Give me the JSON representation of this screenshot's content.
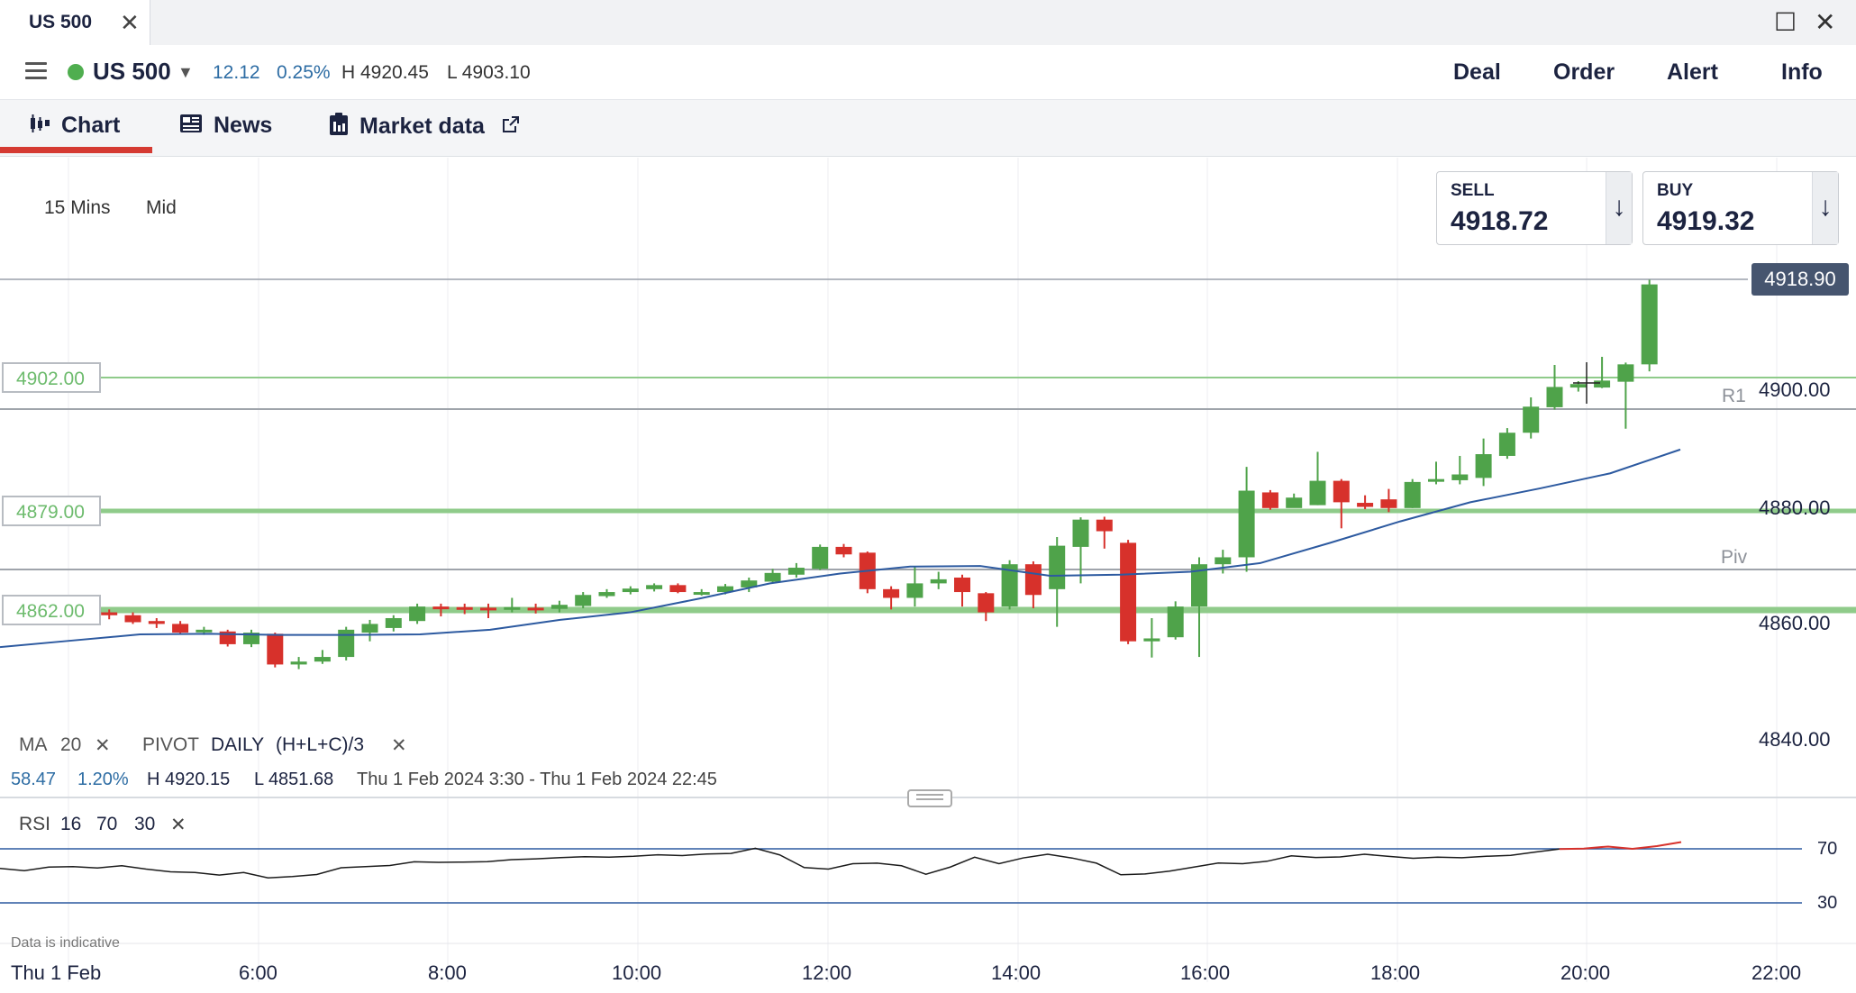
{
  "window": {
    "tab_title": "US 500",
    "close_glyph": "✕",
    "maximize_glyph": "☐",
    "window_close_glyph": "✕"
  },
  "header": {
    "instrument": "US 500",
    "change": "12.12",
    "change_pct": "0.25%",
    "high": "H 4920.45",
    "low": "L 4903.10",
    "menu": [
      "Deal",
      "Order",
      "Alert",
      "Info"
    ],
    "status_color": "#4fae4f"
  },
  "tabs": [
    "Chart",
    "News",
    "Market data"
  ],
  "controls": {
    "timeframe": "15 Mins",
    "price_type": "Mid"
  },
  "sell": {
    "label": "SELL",
    "value": "4918.72",
    "arrow": "↓"
  },
  "buy": {
    "label": "BUY",
    "value": "4919.32",
    "arrow": "↓"
  },
  "current_price": "4918.90",
  "levels": {
    "l1": "4902.00",
    "l2": "4879.00",
    "l3": "4862.00"
  },
  "pivots": {
    "r1": "R1",
    "piv": "Piv"
  },
  "legend": {
    "ma": "MA",
    "ma_value": "20",
    "pivot": "PIVOT",
    "pivot_period": "DAILY",
    "pivot_formula": "(H+L+C)/3",
    "remove_glyph": "✕"
  },
  "stats": {
    "change": "58.47",
    "change_pct": "1.20%",
    "high": "H 4920.15",
    "low": "L 4851.68",
    "range": "Thu 1 Feb 2024 3:30 - Thu 1 Feb 2024 22:45"
  },
  "rsi": {
    "label": "RSI",
    "period": "16",
    "upper": "70",
    "lower": "30"
  },
  "y_axis_labels": [
    "4900.00",
    "4880.00",
    "4860.00",
    "4840.00"
  ],
  "rsi_axis_labels": [
    "70",
    "30"
  ],
  "x_axis": {
    "date_label": "Thu 1 Feb",
    "times": [
      "6:00",
      "8:00",
      "10:00",
      "12:00",
      "14:00",
      "16:00",
      "18:00",
      "20:00",
      "22:00"
    ]
  },
  "disclaimer": "Data is indicative",
  "colors": {
    "up": "#4fa34a",
    "down": "#d7312b",
    "ma": "#2d5aa0",
    "level_green": "#8fcb8a",
    "pivot_grey": "#9fa4ab",
    "accent_red": "#d53a32"
  },
  "chart_data": {
    "type": "candlestick",
    "interval": "15 Mins",
    "ylim": [
      4830,
      4930
    ],
    "candles": [
      {
        "t": "5:30",
        "o": 4861.5,
        "c": 4860.5,
        "h": 4862,
        "l": 4859.5
      },
      {
        "t": "5:45",
        "o": 4861.0,
        "c": 4861.6,
        "h": 4862,
        "l": 4860.5
      },
      {
        "t": "6:15",
        "o": 4861.8,
        "c": 4861.5,
        "h": 4862.2,
        "l": 4861.0
      },
      {
        "t": "6:30",
        "o": 4861.6,
        "c": 4861.2,
        "h": 4862,
        "l": 4860.8
      },
      {
        "t": "6:45",
        "o": 4861.5,
        "c": 4861.0,
        "h": 4862,
        "l": 4860.3
      },
      {
        "t": "7:00",
        "o": 4861.0,
        "c": 4859.8,
        "h": 4861.5,
        "l": 4859.5
      },
      {
        "t": "7:15",
        "o": 4860.0,
        "c": 4859.5,
        "h": 4860.5,
        "l": 4858.8
      },
      {
        "t": "7:30",
        "o": 4859.5,
        "c": 4858.0,
        "h": 4860,
        "l": 4857.8
      },
      {
        "t": "7:45",
        "o": 4858.2,
        "c": 4858.5,
        "h": 4859,
        "l": 4857.6
      },
      {
        "t": "8:00",
        "o": 4858.2,
        "c": 4856.0,
        "h": 4858.5,
        "l": 4855.6
      },
      {
        "t": "8:15",
        "o": 4856.0,
        "c": 4858.0,
        "h": 4858.5,
        "l": 4855.5
      },
      {
        "t": "8:30",
        "o": 4857.8,
        "c": 4852.5,
        "h": 4858,
        "l": 4852.0
      },
      {
        "t": "8:45",
        "o": 4852.5,
        "c": 4853.0,
        "h": 4853.8,
        "l": 4851.7
      },
      {
        "t": "9:00",
        "o": 4853.0,
        "c": 4853.8,
        "h": 4855,
        "l": 4852.6
      },
      {
        "t": "9:15",
        "o": 4853.8,
        "c": 4858.5,
        "h": 4859,
        "l": 4853.2
      },
      {
        "t": "9:30",
        "o": 4858.0,
        "c": 4859.5,
        "h": 4860.2,
        "l": 4856.5
      },
      {
        "t": "9:45",
        "o": 4858.8,
        "c": 4860.5,
        "h": 4861,
        "l": 4858.2
      },
      {
        "t": "10:00",
        "o": 4860.0,
        "c": 4862.5,
        "h": 4863,
        "l": 4859.5
      },
      {
        "t": "10:15",
        "o": 4862.5,
        "c": 4862.3,
        "h": 4863,
        "l": 4860.8
      },
      {
        "t": "10:30",
        "o": 4862.4,
        "c": 4862.2,
        "h": 4863,
        "l": 4861.2
      },
      {
        "t": "10:45",
        "o": 4862.3,
        "c": 4862.1,
        "h": 4863,
        "l": 4860.5
      },
      {
        "t": "11:00",
        "o": 4862.0,
        "c": 4862.4,
        "h": 4864,
        "l": 4861.5
      },
      {
        "t": "11:15",
        "o": 4862.3,
        "c": 4862.0,
        "h": 4863,
        "l": 4861.3
      },
      {
        "t": "11:30",
        "o": 4862.1,
        "c": 4862.8,
        "h": 4863.5,
        "l": 4861.5
      },
      {
        "t": "11:45",
        "o": 4862.6,
        "c": 4864.5,
        "h": 4865,
        "l": 4862.2
      },
      {
        "t": "12:00",
        "o": 4864.3,
        "c": 4865.0,
        "h": 4865.5,
        "l": 4864.0
      },
      {
        "t": "12:15",
        "o": 4865.0,
        "c": 4865.6,
        "h": 4866,
        "l": 4864.6
      },
      {
        "t": "12:30",
        "o": 4865.5,
        "c": 4866.2,
        "h": 4866.5,
        "l": 4865.1
      },
      {
        "t": "12:45",
        "o": 4866.2,
        "c": 4865.0,
        "h": 4866.5,
        "l": 4864.8
      },
      {
        "t": "13:00",
        "o": 4864.8,
        "c": 4865.0,
        "h": 4865.5,
        "l": 4864.4
      },
      {
        "t": "13:15",
        "o": 4865.0,
        "c": 4866.0,
        "h": 4866.4,
        "l": 4864.6
      },
      {
        "t": "13:30",
        "o": 4865.8,
        "c": 4867.0,
        "h": 4867.5,
        "l": 4865.0
      },
      {
        "t": "13:45",
        "o": 4866.8,
        "c": 4868.3,
        "h": 4869,
        "l": 4866.5
      },
      {
        "t": "14:00",
        "o": 4868.0,
        "c": 4869.2,
        "h": 4870,
        "l": 4867.5
      },
      {
        "t": "14:15",
        "o": 4869.0,
        "c": 4872.8,
        "h": 4873.2,
        "l": 4868.8
      },
      {
        "t": "14:30",
        "o": 4872.8,
        "c": 4871.5,
        "h": 4873.3,
        "l": 4871.0
      },
      {
        "t": "14:45",
        "o": 4871.8,
        "c": 4865.5,
        "h": 4872,
        "l": 4864.8
      },
      {
        "t": "15:00",
        "o": 4865.5,
        "c": 4864.0,
        "h": 4866,
        "l": 4862.0
      },
      {
        "t": "15:15",
        "o": 4864.0,
        "c": 4866.5,
        "h": 4869.5,
        "l": 4862.5
      },
      {
        "t": "15:30",
        "o": 4866.5,
        "c": 4867.2,
        "h": 4868.5,
        "l": 4865.5
      },
      {
        "t": "15:45",
        "o": 4867.5,
        "c": 4865.0,
        "h": 4868,
        "l": 4862.5
      },
      {
        "t": "16:00",
        "o": 4864.8,
        "c": 4861.5,
        "h": 4865,
        "l": 4860.0
      },
      {
        "t": "16:15",
        "o": 4862.5,
        "c": 4869.8,
        "h": 4870.5,
        "l": 4862.0
      },
      {
        "t": "16:30",
        "o": 4869.8,
        "c": 4864.5,
        "h": 4870.3,
        "l": 4862.2
      },
      {
        "t": "16:45",
        "o": 4865.5,
        "c": 4873.0,
        "h": 4874.5,
        "l": 4859.0
      },
      {
        "t": "17:00",
        "o": 4872.8,
        "c": 4877.5,
        "h": 4877.9,
        "l": 4866.5
      },
      {
        "t": "17:15",
        "o": 4877.5,
        "c": 4875.5,
        "h": 4878,
        "l": 4872.5
      },
      {
        "t": "17:30",
        "o": 4873.5,
        "c": 4856.5,
        "h": 4874,
        "l": 4856.0
      },
      {
        "t": "17:45",
        "o": 4856.5,
        "c": 4857.0,
        "h": 4860.5,
        "l": 4853.7
      },
      {
        "t": "18:00",
        "o": 4857.2,
        "c": 4862.5,
        "h": 4863.4,
        "l": 4856.8
      },
      {
        "t": "18:15",
        "o": 4862.5,
        "c": 4869.8,
        "h": 4871,
        "l": 4853.8
      },
      {
        "t": "18:30",
        "o": 4869.8,
        "c": 4871.0,
        "h": 4872.3,
        "l": 4868.2
      },
      {
        "t": "18:45",
        "o": 4871.0,
        "c": 4882.5,
        "h": 4886.6,
        "l": 4868.5
      },
      {
        "t": "19:00",
        "o": 4882.2,
        "c": 4879.5,
        "h": 4882.6,
        "l": 4879.2
      },
      {
        "t": "19:15",
        "o": 4879.5,
        "c": 4881.3,
        "h": 4882,
        "l": 4879.6
      },
      {
        "t": "19:30",
        "o": 4880.0,
        "c": 4884.2,
        "h": 4889.2,
        "l": 4880.0
      },
      {
        "t": "19:45",
        "o": 4884.2,
        "c": 4880.5,
        "h": 4884.5,
        "l": 4876.0
      },
      {
        "t": "20:00",
        "o": 4880.4,
        "c": 4879.7,
        "h": 4881.7,
        "l": 4879.3
      },
      {
        "t": "20:15",
        "o": 4881.0,
        "c": 4879.5,
        "h": 4882.8,
        "l": 4878.8
      },
      {
        "t": "20:30",
        "o": 4879.5,
        "c": 4884.0,
        "h": 4884.5,
        "l": 4879.5
      },
      {
        "t": "20:45",
        "o": 4884.2,
        "c": 4884.5,
        "h": 4887.5,
        "l": 4883.6
      },
      {
        "t": "21:00",
        "o": 4884.3,
        "c": 4885.3,
        "h": 4888.5,
        "l": 4883.6
      },
      {
        "t": "21:15",
        "o": 4884.7,
        "c": 4888.8,
        "h": 4891.5,
        "l": 4883.3
      },
      {
        "t": "21:30",
        "o": 4888.5,
        "c": 4892.5,
        "h": 4893.3,
        "l": 4888.0
      },
      {
        "t": "21:45",
        "o": 4892.5,
        "c": 4897.0,
        "h": 4898.6,
        "l": 4891.5
      },
      {
        "t": "22:00",
        "o": 4896.9,
        "c": 4900.4,
        "h": 4904.2,
        "l": 4896.5
      },
      {
        "t": "22:15",
        "o": 4900.3,
        "c": 4900.9,
        "h": 4901.4,
        "l": 4899.6
      },
      {
        "t": "22:30",
        "o": 4900.3,
        "c": 4901.5,
        "h": 4905.6,
        "l": 4900.2
      },
      {
        "t": "22:45",
        "o": 4901.3,
        "c": 4904.3,
        "h": 4904.6,
        "l": 4893.2
      },
      {
        "t": "23:00",
        "o": 4904.3,
        "c": 4918.1,
        "h": 4918.9,
        "l": 4903.1
      }
    ],
    "ma20": [
      4855.5,
      4856.6,
      4857.7,
      4857.8,
      4857.6,
      4857.6,
      4857.7,
      4858.5,
      4860.2,
      4861.5,
      4863.9,
      4866.5,
      4868.2,
      4869.4,
      4869.5,
      4867.8,
      4868.0,
      4868.5,
      4870.0,
      4873.5,
      4877.2,
      4880.5,
      4882.9,
      4885.5,
      4889.6
    ],
    "levels": [
      4902.0,
      4879.0,
      4862.0
    ],
    "pivot_lines": {
      "R1": 4897.0,
      "Piv": 4869.5
    },
    "rsi": {
      "period": 16,
      "values": [
        55.5,
        53.8,
        56.5,
        56.8,
        55.8,
        57.5,
        55.0,
        53.0,
        52.5,
        50.6,
        52.5,
        48.5,
        49.5,
        51.0,
        56.0,
        56.8,
        57.7,
        60.4,
        60.0,
        60.2,
        60.5,
        62.0,
        62.6,
        63.5,
        64.2,
        63.8,
        64.5,
        65.6,
        65.0,
        66.2,
        66.6,
        70.4,
        65.5,
        56.2,
        55.0,
        59.0,
        59.4,
        57.5,
        51.2,
        56.5,
        63.8,
        59.0,
        63.3,
        66.0,
        63.2,
        59.4,
        50.8,
        51.4,
        53.5,
        56.5,
        59.5,
        59.0,
        60.8,
        64.8,
        63.6,
        64.0,
        66.0,
        64.4,
        63.0,
        63.8,
        63.4,
        64.5,
        65.2,
        67.6,
        69.8,
        70.2,
        71.7,
        70.0,
        72.0,
        75.0
      ],
      "bands": [
        70,
        30
      ]
    }
  }
}
